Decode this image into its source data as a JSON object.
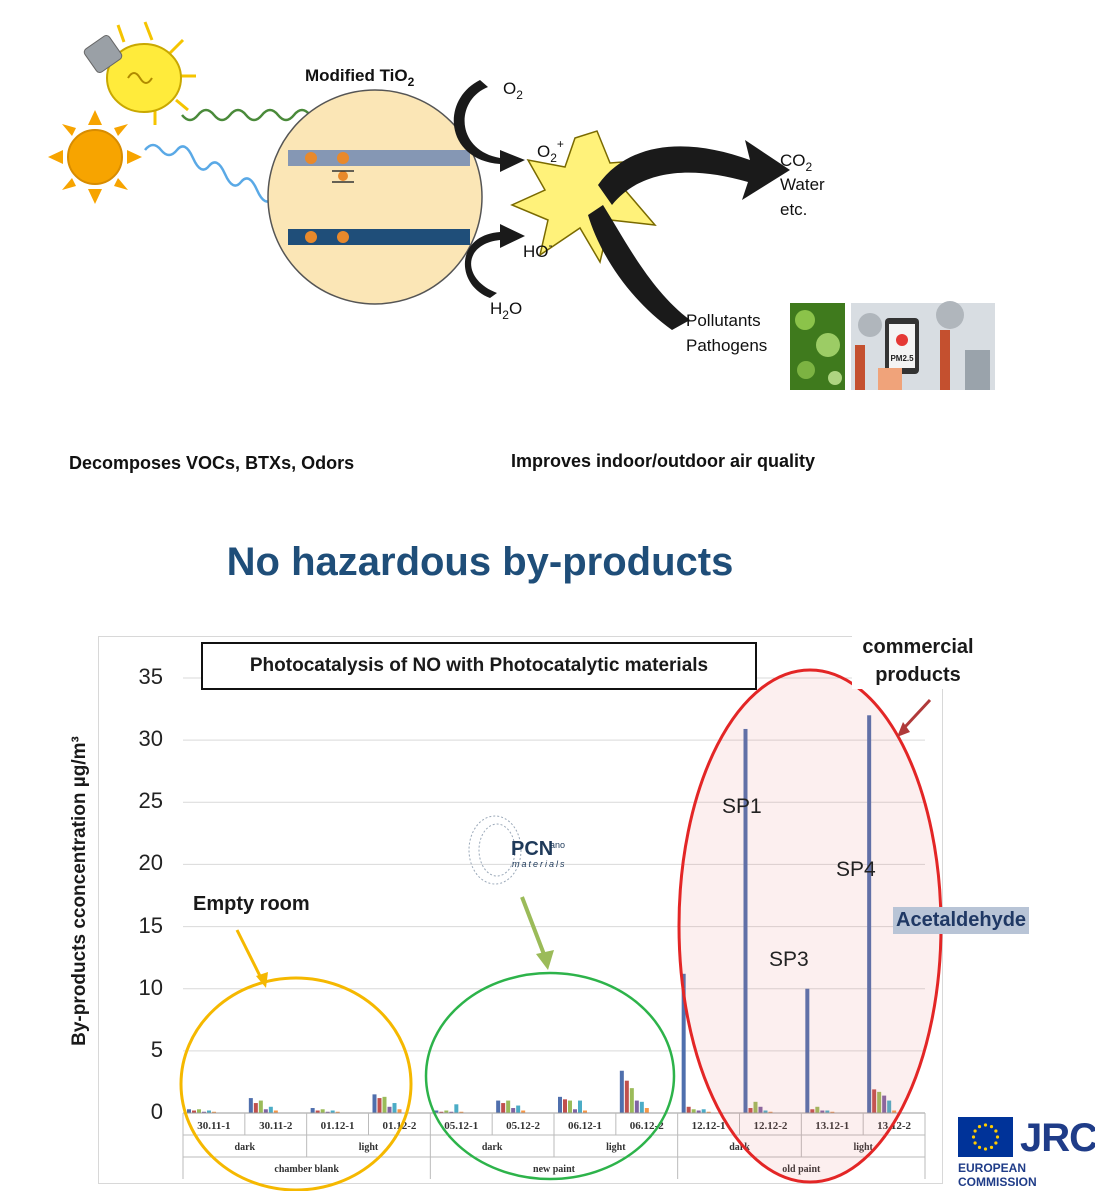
{
  "diagram": {
    "catalyst_label": "Modified TiO",
    "catalyst_sub": "2",
    "o2_label": "O",
    "o2_sub": "2",
    "o2plus_label": "O",
    "o2plus_sub": "2",
    "o2plus_sup": "+",
    "ho_label": "HO",
    "ho_sup": "-",
    "h2o_label_h": "H",
    "h2o_sub": "2",
    "h2o_label_o": "O",
    "products_co2": "CO",
    "products_co2_sub": "2",
    "products_water": "Water",
    "products_etc": "etc.",
    "pollutants": "Pollutants",
    "pathogens": "Pathogens",
    "electron_symbol": "e-",
    "hole_symbol": "h+",
    "pm_label": "PM2.5",
    "left_caption": "Decomposes VOCs, BTXs, Odors",
    "right_caption": "Improves indoor/outdoor air quality"
  },
  "headline": "No hazardous by-products",
  "chart_data": {
    "type": "bar",
    "title": "Photocatalysis of NO with Photocatalytic materials",
    "ylabel": "By-products cconcentration µg/m³",
    "xlabel": "",
    "ylim": [
      0,
      35
    ],
    "yticks": [
      0,
      5,
      10,
      15,
      20,
      25,
      30,
      35
    ],
    "grid": true,
    "categories": [
      "30.11-1",
      "30.11-2",
      "01.12-1",
      "01.12-2",
      "05.12-1",
      "05.12-2",
      "06.12-1",
      "06.12-2",
      "12.12-1",
      "12.12-2",
      "13.12-1",
      "13.12-2"
    ],
    "condition_labels": [
      {
        "label": "dark",
        "span": [
          0,
          1
        ]
      },
      {
        "label": "light",
        "span": [
          2,
          3
        ]
      },
      {
        "label": "dark",
        "span": [
          4,
          5
        ]
      },
      {
        "label": "light",
        "span": [
          6,
          7
        ]
      },
      {
        "label": "dark",
        "span": [
          8,
          9
        ]
      },
      {
        "label": "light",
        "span": [
          10,
          11
        ]
      }
    ],
    "group_labels": [
      {
        "label": "chamber blank",
        "span": [
          0,
          3
        ]
      },
      {
        "label": "new paint",
        "span": [
          4,
          7
        ]
      },
      {
        "label": "old paint",
        "span": [
          8,
          11
        ]
      }
    ],
    "series_colors": [
      "#4f6fad",
      "#c0504d",
      "#9bbb59",
      "#8064a2",
      "#4bacc6",
      "#f79646"
    ],
    "values": [
      [
        0.3,
        0.2,
        0.3,
        0.1,
        0.2,
        0.1
      ],
      [
        1.2,
        0.8,
        1.0,
        0.3,
        0.5,
        0.2
      ],
      [
        0.4,
        0.2,
        0.3,
        0.1,
        0.2,
        0.1
      ],
      [
        1.5,
        1.2,
        1.3,
        0.5,
        0.8,
        0.3
      ],
      [
        0.2,
        0.1,
        0.2,
        0.1,
        0.7,
        0.1
      ],
      [
        1.0,
        0.8,
        1.0,
        0.4,
        0.6,
        0.2
      ],
      [
        1.3,
        1.1,
        1.0,
        0.3,
        1.0,
        0.2
      ],
      [
        3.4,
        2.6,
        2.0,
        1.0,
        0.9,
        0.4
      ],
      [
        11.2,
        0.5,
        0.3,
        0.2,
        0.3,
        0.1
      ],
      [
        30.9,
        0.4,
        0.9,
        0.5,
        0.2,
        0.1
      ],
      [
        10.0,
        0.3,
        0.5,
        0.2,
        0.2,
        0.1
      ],
      [
        32.0,
        1.9,
        1.7,
        1.4,
        1.0,
        0.2
      ]
    ],
    "annotations": {
      "empty_room": "Empty room",
      "commercial": "commercial products",
      "sp1": "SP1",
      "sp3": "SP3",
      "sp4": "SP4",
      "acetaldehyde": "Acetaldehyde",
      "logo_brand": "PCN",
      "logo_sup": "ano",
      "logo_sub": "materials"
    },
    "highlight_colors": {
      "empty_room": "#f5b800",
      "new_paint": "#2db34a",
      "commercial": "#e32626"
    }
  },
  "footer": {
    "jrc": "JRC",
    "commission": "EUROPEAN COMMISSION"
  }
}
